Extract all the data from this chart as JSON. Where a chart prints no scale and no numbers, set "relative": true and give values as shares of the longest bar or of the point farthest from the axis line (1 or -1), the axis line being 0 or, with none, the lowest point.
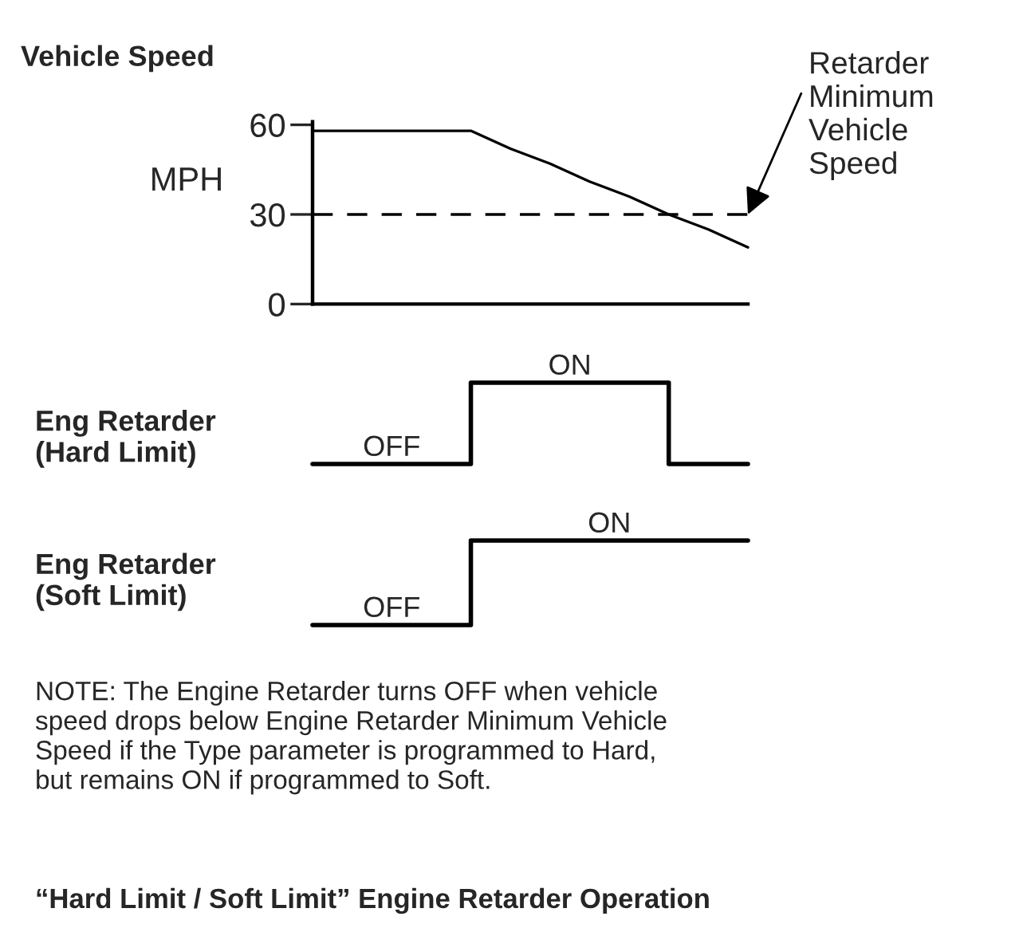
{
  "chart_data": [
    {
      "type": "line",
      "title": "Vehicle Speed",
      "ylabel": "MPH",
      "tick_labels": "y",
      "grid": false,
      "legend": false,
      "categories": [
        null,
        null,
        null,
        null,
        null,
        null,
        null,
        null,
        null,
        null,
        null,
        null
      ],
      "ylim": [
        0,
        61
      ],
      "yticks": [
        0,
        30,
        60
      ],
      "series": [
        {
          "color": "#000000",
          "values": [
            58,
            58,
            58,
            58,
            58,
            52,
            47,
            41,
            36,
            30,
            25,
            19
          ]
        }
      ],
      "ref_lines": [
        {
          "axis": "y",
          "value": 30,
          "color": "#000000",
          "line_style": "dashed"
        }
      ],
      "annotations": [
        "Retarder\nMinimum\nVehicle\nSpeed"
      ]
    },
    {
      "type": "step",
      "relative": true,
      "ylabel": "Eng Retarder\n(Hard Limit)",
      "tick_labels": false,
      "legend": false,
      "categories": [
        null,
        null,
        null,
        null,
        null,
        null,
        null,
        null,
        null,
        null,
        null,
        null
      ],
      "series": [
        {
          "color": "#000000",
          "values": [
            0,
            0,
            0,
            0,
            1,
            1,
            1,
            1,
            1,
            0,
            0,
            0
          ]
        }
      ],
      "annotations": [
        "OFF",
        "ON"
      ]
    },
    {
      "type": "step",
      "relative": true,
      "ylabel": "Eng Retarder\n(Soft Limit)",
      "tick_labels": false,
      "legend": false,
      "categories": [
        null,
        null,
        null,
        null,
        null,
        null,
        null,
        null,
        null,
        null,
        null,
        null
      ],
      "series": [
        {
          "color": "#000000",
          "values": [
            0,
            0,
            0,
            0,
            1,
            1,
            1,
            1,
            1,
            1,
            1,
            1
          ]
        }
      ],
      "annotations": [
        "OFF",
        "ON",
        "NOTE: The Engine Retarder turns OFF when vehicle\nspeed drops below Engine Retarder Minimum Vehicle\nSpeed if the Type parameter is programmed to Hard,\nbut remains ON if programmed to Soft.",
        "“Hard Limit / Soft Limit” Engine Retarder Operation"
      ]
    }
  ]
}
